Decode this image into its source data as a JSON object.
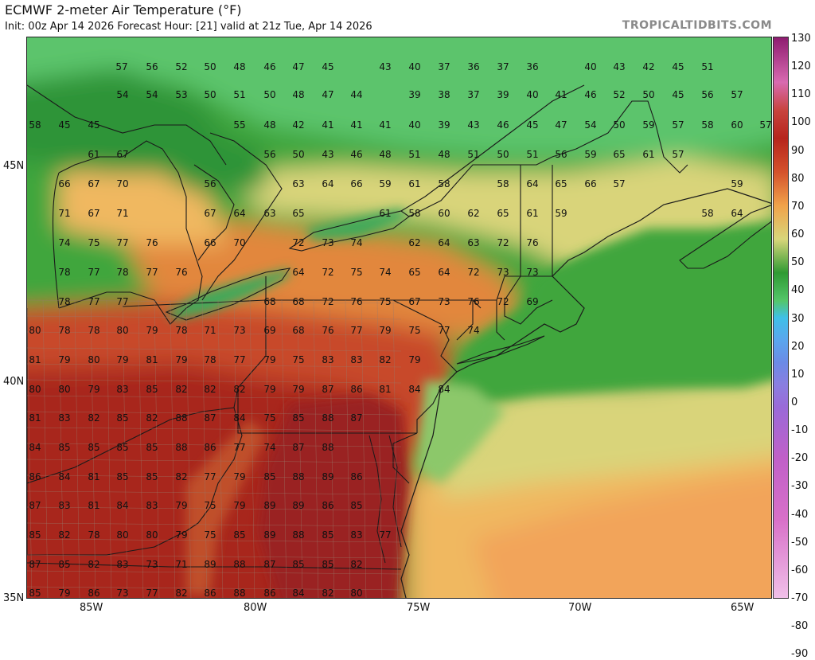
{
  "header": {
    "title": "ECMWF 2-meter Air Temperature (°F)",
    "subtitle": "Init: 00z Apr 14 2026   Forecast Hour: [21]   valid at 21z Tue, Apr 14 2026",
    "brand": "TROPICALTIDBITS.COM"
  },
  "axes": {
    "lat_labels": [
      "45N",
      "40N",
      "35N"
    ],
    "lon_labels": [
      "85W",
      "80W",
      "75W",
      "70W",
      "65W"
    ]
  },
  "colorbar": {
    "ticks": [
      "130",
      "120",
      "110",
      "100",
      "90",
      "80",
      "70",
      "60",
      "50",
      "40",
      "30",
      "20",
      "10",
      "0",
      "-10",
      "-20",
      "-30",
      "-40",
      "-50",
      "-60",
      "-70",
      "-80",
      "-90"
    ],
    "colors": {
      "p130": "#8e1c70",
      "p110": "#d86ab0",
      "p100": "#c8443e",
      "p90": "#b6251d",
      "p80": "#d4522c",
      "p70": "#f0a24a",
      "p60": "#d8d67a",
      "p50": "#2f9a33",
      "p40": "#54c66a",
      "p30": "#3fc0e8",
      "p20": "#5aa6ee",
      "p10": "#6b8ae6",
      "p0": "#8a7ee0",
      "n10": "#9a6ad8",
      "n30": "#c060c8",
      "n60": "#d870c8",
      "n90": "#f0c0e8"
    }
  },
  "map_colors": {
    "hot": "#a8281e",
    "warm": "#c84a2c",
    "mild": "#e2873e",
    "cool": "#f0b860",
    "pale": "#d9d47a",
    "green_light": "#8cc86a",
    "green": "#3fa63c",
    "green_deep": "#2e9438",
    "green_top": "#5cc46c",
    "water_lake": "#3fa95a",
    "border": "#1a1a1a",
    "county": "#9a7a6a"
  },
  "temps": [
    [
      "57",
      152,
      82
    ],
    [
      "56",
      190,
      82
    ],
    [
      "52",
      227,
      82
    ],
    [
      "50",
      263,
      82
    ],
    [
      "48",
      300,
      82
    ],
    [
      "46",
      338,
      82
    ],
    [
      "47",
      374,
      82
    ],
    [
      "45",
      411,
      82
    ],
    [
      "43",
      483,
      82
    ],
    [
      "40",
      520,
      82
    ],
    [
      "37",
      557,
      82
    ],
    [
      "36",
      594,
      82
    ],
    [
      "37",
      631,
      82
    ],
    [
      "36",
      668,
      82
    ],
    [
      "40",
      741,
      82
    ],
    [
      "43",
      777,
      82
    ],
    [
      "42",
      814,
      82
    ],
    [
      "45",
      851,
      82
    ],
    [
      "51",
      888,
      82
    ],
    [
      "54",
      153,
      117
    ],
    [
      "54",
      190,
      117
    ],
    [
      "53",
      227,
      117
    ],
    [
      "50",
      263,
      117
    ],
    [
      "51",
      300,
      117
    ],
    [
      "50",
      338,
      117
    ],
    [
      "48",
      374,
      117
    ],
    [
      "47",
      411,
      117
    ],
    [
      "44",
      447,
      117
    ],
    [
      "39",
      520,
      117
    ],
    [
      "38",
      557,
      117
    ],
    [
      "37",
      594,
      117
    ],
    [
      "39",
      631,
      117
    ],
    [
      "40",
      668,
      117
    ],
    [
      "41",
      704,
      117
    ],
    [
      "46",
      741,
      117
    ],
    [
      "52",
      777,
      117
    ],
    [
      "50",
      814,
      117
    ],
    [
      "45",
      851,
      117
    ],
    [
      "56",
      888,
      117
    ],
    [
      "57",
      925,
      117
    ],
    [
      "58",
      43,
      155
    ],
    [
      "45",
      80,
      155
    ],
    [
      "45",
      117,
      155
    ],
    [
      "55",
      300,
      155
    ],
    [
      "48",
      338,
      155
    ],
    [
      "42",
      374,
      155
    ],
    [
      "41",
      411,
      155
    ],
    [
      "41",
      447,
      155
    ],
    [
      "41",
      483,
      155
    ],
    [
      "40",
      520,
      155
    ],
    [
      "39",
      557,
      155
    ],
    [
      "43",
      594,
      155
    ],
    [
      "46",
      631,
      155
    ],
    [
      "45",
      668,
      155
    ],
    [
      "47",
      704,
      155
    ],
    [
      "54",
      741,
      155
    ],
    [
      "50",
      777,
      155
    ],
    [
      "59",
      814,
      155
    ],
    [
      "57",
      851,
      155
    ],
    [
      "58",
      888,
      155
    ],
    [
      "60",
      925,
      155
    ],
    [
      "57",
      961,
      155
    ],
    [
      "61",
      117,
      192
    ],
    [
      "67",
      153,
      192
    ],
    [
      "56",
      338,
      192
    ],
    [
      "50",
      374,
      192
    ],
    [
      "43",
      411,
      192
    ],
    [
      "46",
      447,
      192
    ],
    [
      "48",
      483,
      192
    ],
    [
      "51",
      520,
      192
    ],
    [
      "48",
      557,
      192
    ],
    [
      "51",
      594,
      192
    ],
    [
      "50",
      631,
      192
    ],
    [
      "51",
      668,
      192
    ],
    [
      "56",
      704,
      192
    ],
    [
      "59",
      741,
      192
    ],
    [
      "65",
      777,
      192
    ],
    [
      "61",
      814,
      192
    ],
    [
      "57",
      851,
      192
    ],
    [
      "66",
      80,
      229
    ],
    [
      "67",
      117,
      229
    ],
    [
      "70",
      153,
      229
    ],
    [
      "56",
      263,
      229
    ],
    [
      "63",
      374,
      229
    ],
    [
      "64",
      411,
      229
    ],
    [
      "66",
      447,
      229
    ],
    [
      "59",
      483,
      229
    ],
    [
      "61",
      520,
      229
    ],
    [
      "58",
      557,
      229
    ],
    [
      "58",
      631,
      229
    ],
    [
      "64",
      668,
      229
    ],
    [
      "65",
      704,
      229
    ],
    [
      "66",
      741,
      229
    ],
    [
      "57",
      777,
      229
    ],
    [
      "59",
      925,
      229
    ],
    [
      "71",
      80,
      266
    ],
    [
      "67",
      117,
      266
    ],
    [
      "71",
      153,
      266
    ],
    [
      "67",
      263,
      266
    ],
    [
      "64",
      300,
      266
    ],
    [
      "63",
      338,
      266
    ],
    [
      "65",
      374,
      266
    ],
    [
      "61",
      483,
      266
    ],
    [
      "58",
      520,
      266
    ],
    [
      "60",
      557,
      266
    ],
    [
      "62",
      594,
      266
    ],
    [
      "65",
      631,
      266
    ],
    [
      "61",
      668,
      266
    ],
    [
      "59",
      704,
      266
    ],
    [
      "58",
      888,
      266
    ],
    [
      "64",
      925,
      266
    ],
    [
      "74",
      80,
      303
    ],
    [
      "75",
      117,
      303
    ],
    [
      "77",
      153,
      303
    ],
    [
      "76",
      190,
      303
    ],
    [
      "66",
      263,
      303
    ],
    [
      "70",
      300,
      303
    ],
    [
      "72",
      374,
      303
    ],
    [
      "73",
      411,
      303
    ],
    [
      "74",
      447,
      303
    ],
    [
      "62",
      520,
      303
    ],
    [
      "64",
      557,
      303
    ],
    [
      "63",
      594,
      303
    ],
    [
      "72",
      631,
      303
    ],
    [
      "76",
      668,
      303
    ],
    [
      "78",
      80,
      340
    ],
    [
      "77",
      117,
      340
    ],
    [
      "78",
      153,
      340
    ],
    [
      "77",
      190,
      340
    ],
    [
      "76",
      227,
      340
    ],
    [
      "64",
      374,
      340
    ],
    [
      "72",
      411,
      340
    ],
    [
      "75",
      447,
      340
    ],
    [
      "74",
      483,
      340
    ],
    [
      "65",
      520,
      340
    ],
    [
      "64",
      557,
      340
    ],
    [
      "72",
      594,
      340
    ],
    [
      "73",
      631,
      340
    ],
    [
      "73",
      668,
      340
    ],
    [
      "78",
      80,
      377
    ],
    [
      "77",
      117,
      377
    ],
    [
      "77",
      153,
      377
    ],
    [
      "68",
      338,
      377
    ],
    [
      "68",
      374,
      377
    ],
    [
      "72",
      411,
      377
    ],
    [
      "76",
      447,
      377
    ],
    [
      "75",
      483,
      377
    ],
    [
      "67",
      520,
      377
    ],
    [
      "73",
      557,
      377
    ],
    [
      "76",
      594,
      377
    ],
    [
      "72",
      631,
      377
    ],
    [
      "69",
      668,
      377
    ],
    [
      "80",
      43,
      413
    ],
    [
      "78",
      80,
      413
    ],
    [
      "78",
      117,
      413
    ],
    [
      "80",
      153,
      413
    ],
    [
      "79",
      190,
      413
    ],
    [
      "78",
      227,
      413
    ],
    [
      "71",
      263,
      413
    ],
    [
      "73",
      300,
      413
    ],
    [
      "69",
      338,
      413
    ],
    [
      "68",
      374,
      413
    ],
    [
      "76",
      411,
      413
    ],
    [
      "77",
      447,
      413
    ],
    [
      "79",
      483,
      413
    ],
    [
      "75",
      520,
      413
    ],
    [
      "77",
      557,
      413
    ],
    [
      "74",
      594,
      413
    ],
    [
      "81",
      43,
      450
    ],
    [
      "79",
      80,
      450
    ],
    [
      "80",
      117,
      450
    ],
    [
      "79",
      153,
      450
    ],
    [
      "81",
      190,
      450
    ],
    [
      "79",
      227,
      450
    ],
    [
      "78",
      263,
      450
    ],
    [
      "77",
      300,
      450
    ],
    [
      "79",
      338,
      450
    ],
    [
      "75",
      374,
      450
    ],
    [
      "83",
      411,
      450
    ],
    [
      "83",
      447,
      450
    ],
    [
      "82",
      483,
      450
    ],
    [
      "79",
      520,
      450
    ],
    [
      "80",
      43,
      487
    ],
    [
      "80",
      80,
      487
    ],
    [
      "79",
      117,
      487
    ],
    [
      "83",
      153,
      487
    ],
    [
      "85",
      190,
      487
    ],
    [
      "82",
      227,
      487
    ],
    [
      "82",
      263,
      487
    ],
    [
      "82",
      300,
      487
    ],
    [
      "79",
      338,
      487
    ],
    [
      "79",
      374,
      487
    ],
    [
      "87",
      411,
      487
    ],
    [
      "86",
      447,
      487
    ],
    [
      "81",
      483,
      487
    ],
    [
      "84",
      520,
      487
    ],
    [
      "84",
      557,
      487
    ],
    [
      "81",
      43,
      523
    ],
    [
      "83",
      80,
      523
    ],
    [
      "82",
      117,
      523
    ],
    [
      "85",
      153,
      523
    ],
    [
      "82",
      190,
      523
    ],
    [
      "88",
      227,
      523
    ],
    [
      "87",
      263,
      523
    ],
    [
      "84",
      300,
      523
    ],
    [
      "75",
      338,
      523
    ],
    [
      "85",
      374,
      523
    ],
    [
      "88",
      411,
      523
    ],
    [
      "87",
      447,
      523
    ],
    [
      "84",
      43,
      560
    ],
    [
      "85",
      80,
      560
    ],
    [
      "85",
      117,
      560
    ],
    [
      "85",
      153,
      560
    ],
    [
      "85",
      190,
      560
    ],
    [
      "88",
      227,
      560
    ],
    [
      "86",
      263,
      560
    ],
    [
      "77",
      300,
      560
    ],
    [
      "74",
      338,
      560
    ],
    [
      "87",
      374,
      560
    ],
    [
      "88",
      411,
      560
    ],
    [
      "86",
      43,
      597
    ],
    [
      "84",
      80,
      597
    ],
    [
      "81",
      117,
      597
    ],
    [
      "85",
      153,
      597
    ],
    [
      "85",
      190,
      597
    ],
    [
      "82",
      227,
      597
    ],
    [
      "77",
      263,
      597
    ],
    [
      "79",
      300,
      597
    ],
    [
      "85",
      338,
      597
    ],
    [
      "88",
      374,
      597
    ],
    [
      "89",
      411,
      597
    ],
    [
      "86",
      447,
      597
    ],
    [
      "87",
      43,
      633
    ],
    [
      "83",
      80,
      633
    ],
    [
      "81",
      117,
      633
    ],
    [
      "84",
      153,
      633
    ],
    [
      "83",
      190,
      633
    ],
    [
      "79",
      227,
      633
    ],
    [
      "75",
      263,
      633
    ],
    [
      "79",
      300,
      633
    ],
    [
      "89",
      338,
      633
    ],
    [
      "89",
      374,
      633
    ],
    [
      "86",
      411,
      633
    ],
    [
      "85",
      447,
      633
    ],
    [
      "85",
      43,
      670
    ],
    [
      "82",
      80,
      670
    ],
    [
      "78",
      117,
      670
    ],
    [
      "80",
      153,
      670
    ],
    [
      "80",
      190,
      670
    ],
    [
      "79",
      227,
      670
    ],
    [
      "75",
      263,
      670
    ],
    [
      "85",
      300,
      670
    ],
    [
      "89",
      338,
      670
    ],
    [
      "88",
      374,
      670
    ],
    [
      "85",
      411,
      670
    ],
    [
      "83",
      447,
      670
    ],
    [
      "77",
      483,
      670
    ],
    [
      "87",
      43,
      707
    ],
    [
      "85",
      80,
      707
    ],
    [
      "82",
      117,
      707
    ],
    [
      "83",
      153,
      707
    ],
    [
      "73",
      190,
      707
    ],
    [
      "71",
      227,
      707
    ],
    [
      "89",
      263,
      707
    ],
    [
      "88",
      300,
      707
    ],
    [
      "87",
      338,
      707
    ],
    [
      "85",
      374,
      707
    ],
    [
      "85",
      411,
      707
    ],
    [
      "82",
      447,
      707
    ],
    [
      "85",
      43,
      743
    ],
    [
      "79",
      80,
      743
    ],
    [
      "86",
      117,
      743
    ],
    [
      "73",
      153,
      743
    ],
    [
      "77",
      190,
      743
    ],
    [
      "82",
      227,
      743
    ],
    [
      "86",
      263,
      743
    ],
    [
      "88",
      300,
      743
    ],
    [
      "86",
      338,
      743
    ],
    [
      "84",
      374,
      743
    ],
    [
      "82",
      411,
      743
    ],
    [
      "80",
      447,
      743
    ]
  ]
}
